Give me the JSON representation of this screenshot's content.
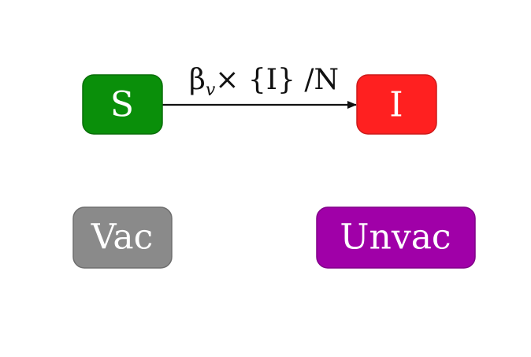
{
  "nodes": {
    "s": {
      "label": "S",
      "color": "#0a8f0a"
    },
    "i": {
      "label": "I",
      "color": "#ff2020"
    },
    "vac": {
      "label": "Vac",
      "color": "#8a8a8a"
    },
    "unvac": {
      "label": "Unvac",
      "color": "#a000a8"
    }
  },
  "edge": {
    "beta": "β",
    "subscript": "v",
    "rest": "× {I} /N"
  }
}
